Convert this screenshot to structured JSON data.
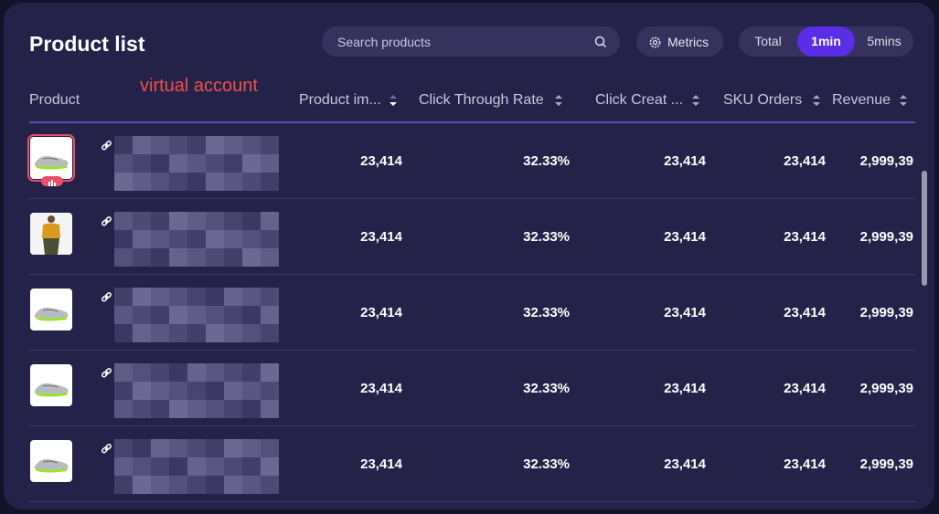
{
  "header": {
    "title": "Product list",
    "search_placeholder": "Search products",
    "metrics_button": "Metrics",
    "time_tabs": [
      "Total",
      "1min",
      "5mins"
    ],
    "active_tab_index": 1
  },
  "annotation": "virtual account",
  "table": {
    "columns": [
      "Product",
      "Product im...",
      "Click Through Rate",
      "Click Creat ...",
      "SKU Orders",
      "Revenue"
    ],
    "sorted_column_index": 1,
    "rows": [
      [
        "23,414",
        "32.33%",
        "23,414",
        "23,414",
        "2,999,39"
      ],
      [
        "23,414",
        "32.33%",
        "23,414",
        "23,414",
        "2,999,39"
      ],
      [
        "23,414",
        "32.33%",
        "23,414",
        "23,414",
        "2,999,39"
      ],
      [
        "23,414",
        "32.33%",
        "23,414",
        "23,414",
        "2,999,39"
      ],
      [
        "23,414",
        "32.33%",
        "23,414",
        "23,414",
        "2,999,39"
      ]
    ]
  }
}
